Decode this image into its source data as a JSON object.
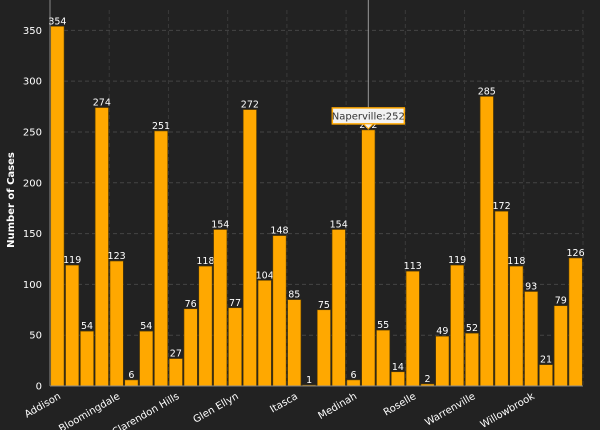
{
  "chart_data": {
    "type": "bar",
    "y_label": "Number of Cases",
    "categories": [
      "Addison",
      null,
      null,
      null,
      "Bloomingdale",
      null,
      null,
      null,
      "Clarendon Hills",
      null,
      null,
      null,
      "Glen Ellyn",
      null,
      null,
      null,
      "Itasca",
      null,
      null,
      null,
      "Medinah",
      null,
      null,
      null,
      "Roselle",
      null,
      null,
      null,
      "Warrenville",
      null,
      null,
      null,
      "Willowbrook",
      null,
      null,
      null
    ],
    "values": [
      354,
      119,
      54,
      274,
      123,
      6,
      54,
      251,
      27,
      76,
      118,
      154,
      77,
      272,
      104,
      148,
      85,
      1,
      75,
      154,
      6,
      252,
      55,
      14,
      113,
      2,
      49,
      119,
      52,
      285,
      172,
      118,
      93,
      21,
      79,
      126
    ],
    "color": "#ffa800",
    "ylim": [
      0,
      370
    ],
    "yticks": [
      0,
      50,
      100,
      150,
      200,
      250,
      300,
      350
    ],
    "grid": true,
    "tooltip": {
      "index": 21,
      "text": "Naperville:252"
    }
  }
}
